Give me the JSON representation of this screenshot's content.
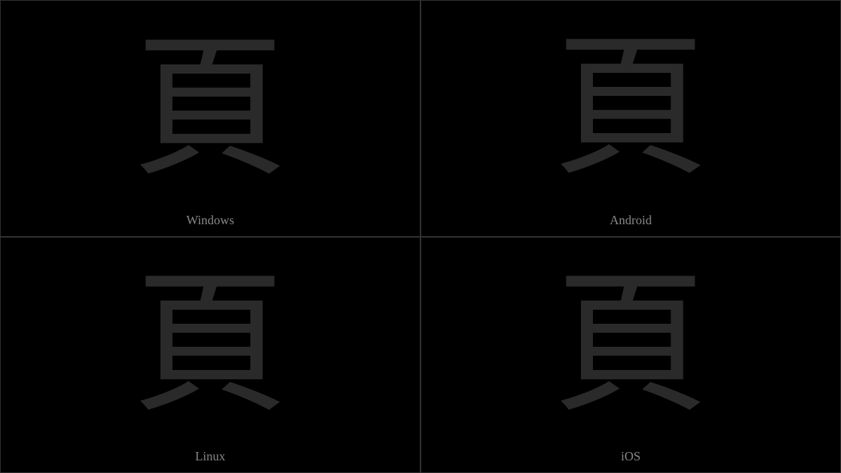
{
  "background_color": "#000000",
  "border_color": "#333333",
  "glyph_color": "#2a2a2a",
  "label_color": "#888888",
  "glyph_fontsize": 220,
  "label_fontsize": 18,
  "grid": {
    "rows": 2,
    "columns": 2
  },
  "panels": [
    {
      "glyph": "頁",
      "label": "Windows",
      "font_style": "sans-serif-regular"
    },
    {
      "glyph": "頁",
      "label": "Android",
      "font_style": "sans-serif-light"
    },
    {
      "glyph": "頁",
      "label": "Linux",
      "font_style": "sans-serif-regular"
    },
    {
      "glyph": "頁",
      "label": "iOS",
      "font_style": "sans-serif-regular"
    }
  ]
}
